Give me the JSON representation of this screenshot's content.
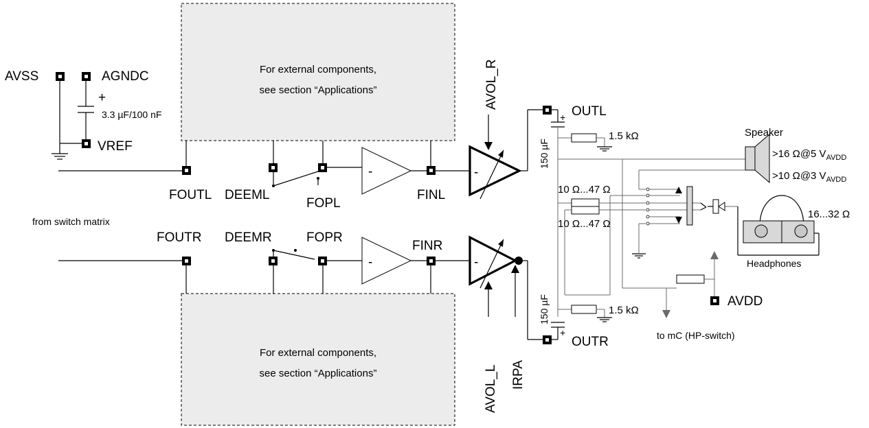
{
  "external_boxes": {
    "top": [
      "For external components,",
      "see section “Applications”"
    ],
    "bottom": [
      "For external components,",
      "see section “Applications”"
    ]
  },
  "pins": {
    "avss": "AVSS",
    "agndc": "AGNDC",
    "vref": "VREF",
    "foutl": "FOUTL",
    "deeml": "DEEML",
    "fopl": "FOPL",
    "finl": "FINL",
    "foutr": "FOUTR",
    "deemr": "DEEMR",
    "fopr": "FOPR",
    "finr": "FINR",
    "outl": "OUTL",
    "outr": "OUTR",
    "avdd": "AVDD"
  },
  "controls": {
    "avol_r": "AVOL_R",
    "avol_l": "AVOL_L",
    "irpa": "IRPA"
  },
  "components": {
    "cap_ref": "3.3 µF/100 nF",
    "cap_ref_plus": "+",
    "cap_out_top": "150 µF",
    "cap_out_bottom": "150 µF",
    "cap_plus": "+",
    "res_pull_top": "1.5 kΩ",
    "res_pull_bottom": "1.5 kΩ",
    "res_series_top": "10 Ω...47 Ω",
    "res_series_bottom": "10 Ω...47 Ω"
  },
  "amp_signs": {
    "filter_l": "-",
    "filter_r": "-",
    "pa_l": "-",
    "pa_r": "-"
  },
  "speaker": {
    "title": "Speaker",
    "spec1_main": ">16 Ω@5 V",
    "spec1_sub": "AVDD",
    "spec2_main": ">10 Ω@3 V",
    "spec2_sub": "AVDD"
  },
  "headphones": {
    "label": "Headphones",
    "impedance": "16...32 Ω"
  },
  "notes": {
    "switch_matrix": "from switch matrix",
    "hp_switch": "to mC (HP-switch)"
  }
}
